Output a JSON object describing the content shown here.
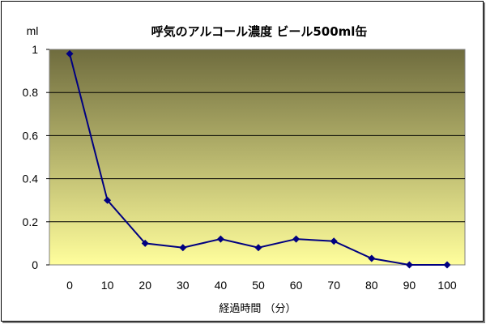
{
  "chart_data": {
    "type": "line",
    "title": "呼気のアルコール濃度  ビール500ml缶",
    "xlabel": "経過時間 （分）",
    "ylabel": "ml",
    "x": [
      0,
      10,
      20,
      30,
      40,
      50,
      60,
      70,
      80,
      90,
      100
    ],
    "x_ticks": [
      "0",
      "10",
      "20",
      "30",
      "40",
      "50",
      "60",
      "70",
      "80",
      "90",
      "100"
    ],
    "y_ticks": [
      "0",
      "0.2",
      "0.4",
      "0.6",
      "0.8",
      "1"
    ],
    "ylim": [
      0,
      1
    ],
    "grid": true,
    "legend": "none",
    "series": [
      {
        "values": [
          0.98,
          0.3,
          0.1,
          0.08,
          0.12,
          0.08,
          0.12,
          0.11,
          0.03,
          0.0,
          0.0
        ]
      }
    ],
    "colors": {
      "line": "#000080",
      "plot_top": "#6f6c3e",
      "plot_bottom": "#fffe9c",
      "grid": "#000000"
    }
  }
}
